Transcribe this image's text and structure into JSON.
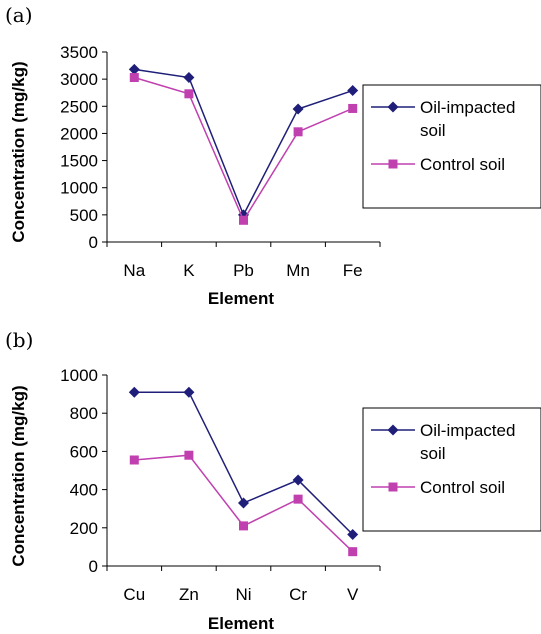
{
  "chart_data": [
    {
      "type": "line",
      "panel_label": "(a)",
      "categories": [
        "Na",
        "K",
        "Pb",
        "Mn",
        "Fe"
      ],
      "xlabel": "Element",
      "ylabel": "Concentration (mg/kg)",
      "ylim": [
        0,
        3500
      ],
      "yticks": [
        "0",
        "500",
        "1000",
        "1500",
        "2000",
        "2500",
        "3000",
        "3500"
      ],
      "grid": false,
      "legend_position": "right",
      "series": [
        {
          "name": "Oil-impacted soil",
          "name_lines": [
            "Oil-impacted",
            "soil"
          ],
          "color": "#1f1f7a",
          "marker": "diamond",
          "values": [
            3180,
            3030,
            500,
            2450,
            2790
          ]
        },
        {
          "name": "Control soil",
          "name_lines": [
            "Control soil"
          ],
          "color": "#c040b0",
          "marker": "square",
          "values": [
            3030,
            2730,
            400,
            2030,
            2460
          ]
        }
      ]
    },
    {
      "type": "line",
      "panel_label": "(b)",
      "categories": [
        "Cu",
        "Zn",
        "Ni",
        "Cr",
        "V"
      ],
      "xlabel": "Element",
      "ylabel": "Concentration (mg/kg)",
      "ylim": [
        0,
        1000
      ],
      "yticks": [
        "0",
        "200",
        "400",
        "600",
        "800",
        "1000"
      ],
      "grid": false,
      "legend_position": "right",
      "series": [
        {
          "name": "Oil-impacted soil",
          "name_lines": [
            "Oil-impacted",
            "soil"
          ],
          "color": "#1f1f7a",
          "marker": "diamond",
          "values": [
            910,
            910,
            330,
            450,
            165
          ]
        },
        {
          "name": "Control soil",
          "name_lines": [
            "Control soil"
          ],
          "color": "#c040b0",
          "marker": "square",
          "values": [
            555,
            580,
            210,
            350,
            75
          ]
        }
      ]
    }
  ]
}
